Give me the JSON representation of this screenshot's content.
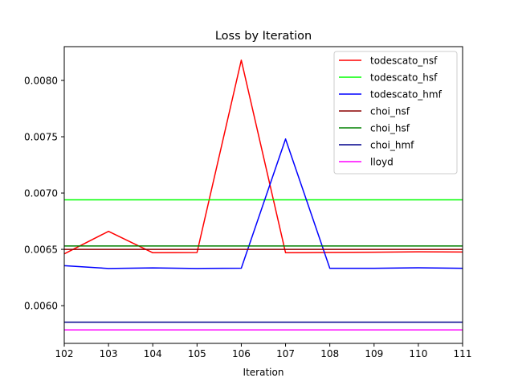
{
  "chart_data": {
    "type": "line",
    "title": "Loss by Iteration",
    "xlabel": "Iteration",
    "ylabel": "",
    "x": [
      102,
      103,
      104,
      105,
      106,
      107,
      108,
      109,
      110,
      111
    ],
    "xlim": [
      102,
      111
    ],
    "ylim": [
      0.005665,
      0.0083
    ],
    "xticks": [
      102,
      103,
      104,
      105,
      106,
      107,
      108,
      109,
      110,
      111
    ],
    "yticks": [
      0.006,
      0.0065,
      0.007,
      0.0075,
      0.008
    ],
    "ytick_labels": [
      "0.0060",
      "0.0065",
      "0.0070",
      "0.0075",
      "0.0080"
    ],
    "grid": false,
    "legend_position": "top-right",
    "series": [
      {
        "name": "todescato_nsf",
        "color": "#ff0000",
        "values": [
          0.00646,
          0.00666,
          0.00647,
          0.006472,
          0.00818,
          0.00647,
          0.006473,
          0.006475,
          0.006478,
          0.006476
        ]
      },
      {
        "name": "todescato_hsf",
        "color": "#00ff00",
        "values": [
          0.00694,
          0.00694,
          0.00694,
          0.00694,
          0.00694,
          0.00694,
          0.00694,
          0.00694,
          0.00694,
          0.00694
        ]
      },
      {
        "name": "todescato_hmf",
        "color": "#0000ff",
        "values": [
          0.006355,
          0.00633,
          0.006335,
          0.00633,
          0.006333,
          0.00748,
          0.006332,
          0.006332,
          0.006336,
          0.006332
        ]
      },
      {
        "name": "choi_nsf",
        "color": "#8b0000",
        "values": [
          0.0065,
          0.0065,
          0.0065,
          0.0065,
          0.0065,
          0.0065,
          0.0065,
          0.0065,
          0.0065,
          0.0065
        ]
      },
      {
        "name": "choi_hsf",
        "color": "#008000",
        "values": [
          0.00653,
          0.00653,
          0.00653,
          0.00653,
          0.00653,
          0.00653,
          0.00653,
          0.00653,
          0.00653,
          0.00653
        ]
      },
      {
        "name": "choi_hmf",
        "color": "#00008b",
        "values": [
          0.005853,
          0.005853,
          0.005853,
          0.005853,
          0.005853,
          0.005853,
          0.005853,
          0.005853,
          0.005853,
          0.005853
        ]
      },
      {
        "name": "lloyd",
        "color": "#ff00ff",
        "values": [
          0.005785,
          0.005785,
          0.005785,
          0.005785,
          0.005785,
          0.005785,
          0.005785,
          0.005785,
          0.005785,
          0.005785
        ]
      }
    ]
  }
}
